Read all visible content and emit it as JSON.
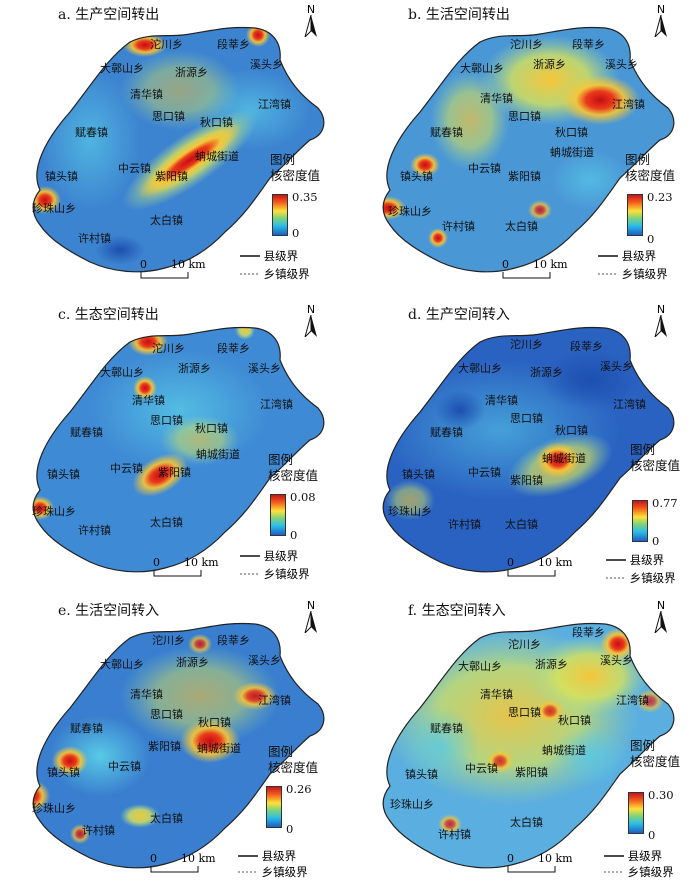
{
  "panels": [
    {
      "title": "a. 生产空间转出",
      "max": "0.35",
      "min": "0"
    },
    {
      "title": "b. 生活空间转出",
      "max": "0.23",
      "min": "0"
    },
    {
      "title": "c. 生态空间转出",
      "max": "0.08",
      "min": "0"
    },
    {
      "title": "d. 生产空间转入",
      "max": "0.77",
      "min": "0"
    },
    {
      "title": "e. 生活空间转入",
      "max": "0.26",
      "min": "0"
    },
    {
      "title": "f. 生态空间转入",
      "max": "0.30",
      "min": "0"
    }
  ],
  "towns": [
    "沱川乡",
    "段莘乡",
    "大鄣山乡",
    "浙源乡",
    "溪头乡",
    "清华镇",
    "江湾镇",
    "思口镇",
    "赋春镇",
    "秋口镇",
    "蚺城街道",
    "镇头镇",
    "中云镇",
    "紫阳镇",
    "珍珠山乡",
    "太白镇",
    "许村镇"
  ],
  "legend": {
    "title1": "图例",
    "title2": "核密度值",
    "county": "县级界",
    "township": "乡镇级界"
  },
  "scalebar": {
    "zero": "0",
    "ten": "10 km"
  },
  "north": "N",
  "colors": {
    "high": "#c8141e",
    "mid": "#fde13a",
    "low": "#1b5fc7",
    "base": "#3d84d0"
  }
}
